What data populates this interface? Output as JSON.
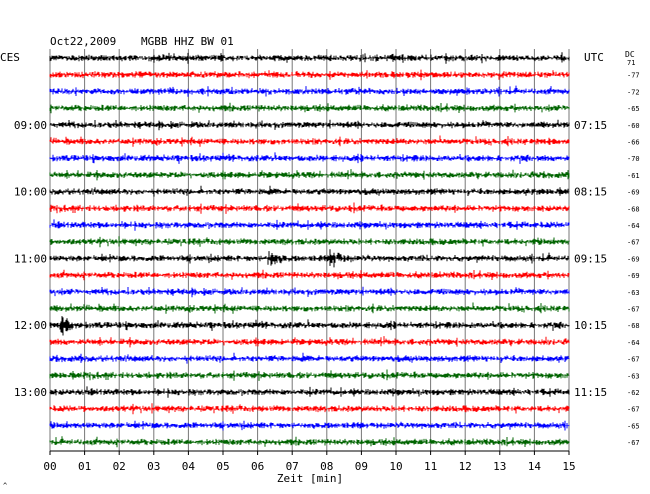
{
  "chart_data": {
    "type": "line",
    "header": {
      "date": "Oct22,2009",
      "station": "MGBB HHZ BW 01"
    },
    "left_timezone": "CES",
    "right_timezone": "UTC",
    "dc_label": "DC",
    "xlabel": "Zeit [min]",
    "xlim": [
      0,
      15
    ],
    "x_ticks": [
      "00",
      "01",
      "02",
      "03",
      "04",
      "05",
      "06",
      "07",
      "08",
      "09",
      "10",
      "11",
      "12",
      "13",
      "14",
      "15"
    ],
    "trace_colors": [
      "#000000",
      "#ff0000",
      "#0000ff",
      "#006400"
    ],
    "left_hour_labels": [
      {
        "row": 4,
        "label": "09:00"
      },
      {
        "row": 8,
        "label": "10:00"
      },
      {
        "row": 12,
        "label": "11:00"
      },
      {
        "row": 16,
        "label": "12:00"
      },
      {
        "row": 20,
        "label": "13:00"
      }
    ],
    "right_hour_labels": [
      {
        "row": 4,
        "label": "07:15"
      },
      {
        "row": 8,
        "label": "08:15"
      },
      {
        "row": 12,
        "label": "09:15"
      },
      {
        "row": 16,
        "label": "10:15"
      },
      {
        "row": 20,
        "label": "11:15"
      }
    ],
    "dc_offsets": [
      "71",
      "-77",
      "-72",
      "-65",
      "-60",
      "-66",
      "-70",
      "-61",
      "-69",
      "-68",
      "-64",
      "-67",
      "-69",
      "-69",
      "-63",
      "-67",
      "-68",
      "-64",
      "-67",
      "-63",
      "-62",
      "-67",
      "-65",
      "-67"
    ],
    "events": [
      {
        "row": 12,
        "minute": 6.4,
        "amplitude": "large"
      },
      {
        "row": 12,
        "minute": 8.2,
        "amplitude": "large"
      },
      {
        "row": 16,
        "minute": 0.4,
        "amplitude": "large"
      }
    ]
  },
  "corner_mark": "^"
}
